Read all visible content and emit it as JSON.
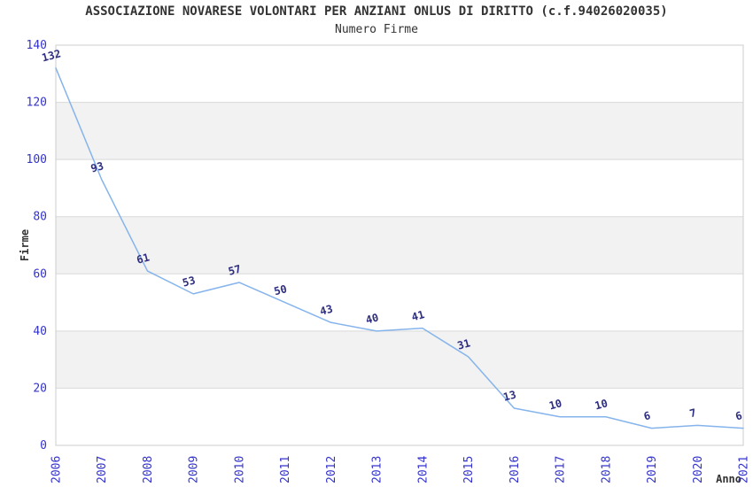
{
  "header": {
    "title": "ASSOCIAZIONE NOVARESE VOLONTARI PER ANZIANI ONLUS DI DIRITTO (c.f.94026020035)",
    "subtitle": "Numero Firme"
  },
  "chart_data": {
    "type": "line",
    "title": "ASSOCIAZIONE NOVARESE VOLONTARI PER ANZIANI ONLUS DI DIRITTO (c.f.94026020035)",
    "subtitle": "Numero Firme",
    "xlabel": "Anno",
    "ylabel": "Firme",
    "x": [
      "2006",
      "2007",
      "2008",
      "2009",
      "2010",
      "2011",
      "2012",
      "2013",
      "2014",
      "2015",
      "2016",
      "2017",
      "2018",
      "2019",
      "2020",
      "2021"
    ],
    "series": [
      {
        "name": "Numero Firme",
        "values": [
          132,
          93,
          61,
          53,
          57,
          50,
          43,
          40,
          41,
          31,
          13,
          10,
          10,
          6,
          7,
          6
        ]
      }
    ],
    "ylim": [
      0,
      140
    ],
    "ytick_step": 20,
    "yticks": [
      0,
      20,
      40,
      60,
      80,
      100,
      120,
      140
    ],
    "grid": true,
    "alternating_bands": true,
    "legend_position": "none",
    "data_labels_shown": true,
    "colors": {
      "line": "#85b4ec",
      "data_label": "#2e2e80",
      "tick_label": "#3333cc",
      "text": "#333333",
      "band": "#f2f2f2",
      "gridline": "#d9d9d9",
      "border": "#cccccc",
      "background": "#ffffff"
    }
  }
}
